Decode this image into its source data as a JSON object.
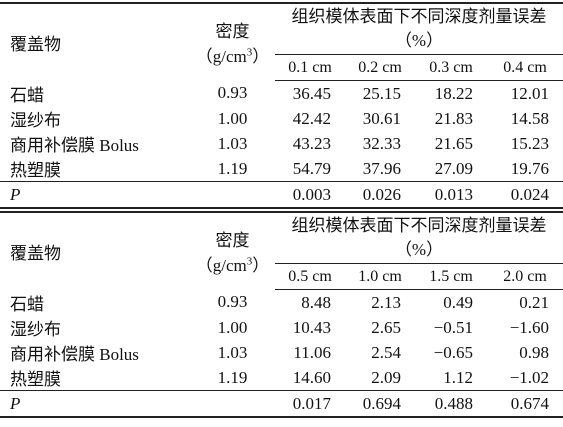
{
  "tables": [
    {
      "header": {
        "material": "覆盖物",
        "density": "密度",
        "density_unit": {
          "pre": "（g/cm",
          "sup": "3",
          "post": "）"
        },
        "group": "组织模体表面下不同深度剂量误差（%）",
        "depths": [
          "0.1 cm",
          "0.2 cm",
          "0.3 cm",
          "0.4 cm"
        ]
      },
      "rows": [
        {
          "material": "石蜡",
          "density": "0.93",
          "values": [
            "36.45",
            "25.15",
            "18.22",
            "12.01"
          ]
        },
        {
          "material": "湿纱布",
          "density": "1.00",
          "values": [
            "42.42",
            "30.61",
            "21.83",
            "14.58"
          ]
        },
        {
          "material": "商用补偿膜 Bolus",
          "density": "1.03",
          "values": [
            "43.23",
            "32.33",
            "21.65",
            "15.23"
          ]
        },
        {
          "material": "热塑膜",
          "density": "1.19",
          "values": [
            "54.79",
            "37.96",
            "27.09",
            "19.76"
          ]
        }
      ],
      "p_row": {
        "label": "P",
        "values": [
          "0.003",
          "0.026",
          "0.013",
          "0.024"
        ]
      }
    },
    {
      "header": {
        "material": "覆盖物",
        "density": "密度",
        "density_unit": {
          "pre": "（g/cm",
          "sup": "3",
          "post": "）"
        },
        "group": "组织模体表面下不同深度剂量误差（%）",
        "depths": [
          "0.5 cm",
          "1.0 cm",
          "1.5 cm",
          "2.0 cm"
        ]
      },
      "rows": [
        {
          "material": "石蜡",
          "density": "0.93",
          "values": [
            "8.48",
            "2.13",
            "0.49",
            "0.21"
          ]
        },
        {
          "material": "湿纱布",
          "density": "1.00",
          "values": [
            "10.43",
            "2.65",
            "−0.51",
            "−1.60"
          ]
        },
        {
          "material": "商用补偿膜 Bolus",
          "density": "1.03",
          "values": [
            "11.06",
            "2.54",
            "−0.65",
            "0.98"
          ]
        },
        {
          "material": "热塑膜",
          "density": "1.19",
          "values": [
            "14.60",
            "2.09",
            "1.12",
            "−1.02"
          ]
        }
      ],
      "p_row": {
        "label": "P",
        "values": [
          "0.017",
          "0.694",
          "0.488",
          "0.674"
        ]
      }
    }
  ]
}
